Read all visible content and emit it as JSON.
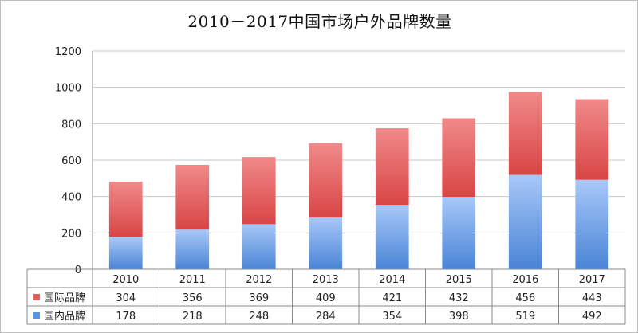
{
  "chart_data": {
    "type": "bar",
    "stacked": true,
    "title": "2010－2017中国市场户外品牌数量",
    "categories": [
      "2010",
      "2011",
      "2012",
      "2013",
      "2014",
      "2015",
      "2016",
      "2017"
    ],
    "series": [
      {
        "name": "国内品牌",
        "values": [
          178,
          218,
          248,
          284,
          354,
          398,
          519,
          492
        ],
        "color": "#5b95e0"
      },
      {
        "name": "国际品牌",
        "values": [
          304,
          356,
          369,
          409,
          421,
          432,
          456,
          443
        ],
        "color": "#e65c5c"
      }
    ],
    "ylim": [
      0,
      1200
    ],
    "yticks": [
      0,
      200,
      400,
      600,
      800,
      1000,
      1200
    ],
    "grid": true,
    "legend": "data-table",
    "data_table_rows": [
      "国际品牌",
      "国内品牌"
    ]
  }
}
